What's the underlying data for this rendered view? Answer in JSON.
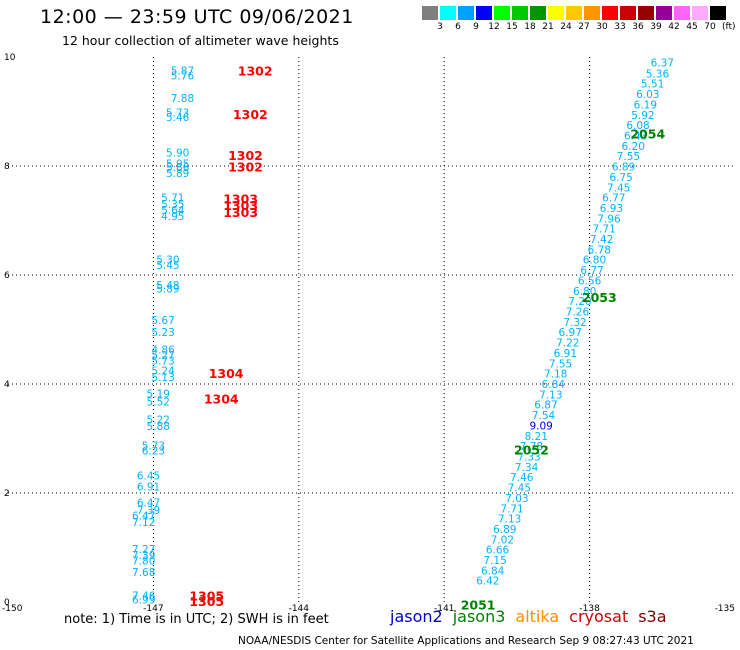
{
  "title": "12:00 — 23:59 UTC 09/06/2021",
  "subtitle": "12 hour collection of altimeter wave heights",
  "color_scale": {
    "colors": [
      "#7f7f7f",
      "#00ffff",
      "#00a0ff",
      "#0000ff",
      "#00ff00",
      "#00c800",
      "#009600",
      "#ffff00",
      "#ffc800",
      "#ff9600",
      "#ff0000",
      "#c80000",
      "#960000",
      "#960096",
      "#ff64ff",
      "#ffaaff",
      "#000000"
    ],
    "labels": [
      "3",
      "6",
      "9",
      "12",
      "15",
      "18",
      "21",
      "24",
      "27",
      "30",
      "33",
      "36",
      "39",
      "42",
      "45",
      "70"
    ],
    "unit": "(ft)"
  },
  "note": "note:  1) Time is in UTC;  2) SWH is in feet",
  "satellites": [
    {
      "name": "jason2",
      "color": "#0000cc"
    },
    {
      "name": "jason3",
      "color": "#008000"
    },
    {
      "name": "altika",
      "color": "#ff8c00"
    },
    {
      "name": "cryosat",
      "color": "#d00000"
    },
    {
      "name": "s3a",
      "color": "#800000"
    }
  ],
  "credit": "NOAA/NESDIS Center for Satellite Applications and Research    Sep  9 08:27:43 UTC 2021",
  "chart_data": {
    "type": "scatter",
    "xlim": [
      -150,
      -135
    ],
    "ylim": [
      0,
      10
    ],
    "x_ticks": [
      "-150",
      "-147",
      "-144",
      "-141",
      "-138",
      "-135"
    ],
    "y_ticks": [
      "0",
      "2",
      "4",
      "6",
      "8",
      "10"
    ],
    "grid": true,
    "track_labels": [
      {
        "text": "1302",
        "x": -144.9,
        "y": 9.75,
        "color": "#ff0000"
      },
      {
        "text": "1302",
        "x": -145.0,
        "y": 8.95,
        "color": "#ff0000"
      },
      {
        "text": "1302",
        "x": -145.1,
        "y": 8.2,
        "color": "#ff0000"
      },
      {
        "text": "1302",
        "x": -145.1,
        "y": 7.99,
        "color": "#ff0000"
      },
      {
        "text": "1303",
        "x": -145.2,
        "y": 7.4,
        "color": "#ff0000"
      },
      {
        "text": "1303",
        "x": -145.2,
        "y": 7.28,
        "color": "#ff0000"
      },
      {
        "text": "1303",
        "x": -145.2,
        "y": 7.16,
        "color": "#ff0000"
      },
      {
        "text": "1304",
        "x": -145.5,
        "y": 4.2,
        "color": "#ff0000"
      },
      {
        "text": "1304",
        "x": -145.6,
        "y": 3.73,
        "color": "#ff0000"
      },
      {
        "text": "1305",
        "x": -145.9,
        "y": 0.12,
        "color": "#ff0000"
      },
      {
        "text": "1305",
        "x": -145.9,
        "y": 0.02,
        "color": "#ff0000"
      },
      {
        "text": "2054",
        "x": -136.8,
        "y": 8.6,
        "color": "#008000"
      },
      {
        "text": "2053",
        "x": -137.8,
        "y": 5.6,
        "color": "#008000"
      },
      {
        "text": "2052",
        "x": -139.2,
        "y": 2.8,
        "color": "#008000"
      },
      {
        "text": "2051",
        "x": -140.3,
        "y": -0.05,
        "color": "#008000"
      }
    ],
    "points": [
      {
        "x": -146.4,
        "y": 9.75,
        "v": "5.87",
        "color": "#00b4ff"
      },
      {
        "x": -146.4,
        "y": 9.66,
        "v": "5.76",
        "color": "#00b4ff"
      },
      {
        "x": -146.4,
        "y": 9.25,
        "v": "7.88",
        "color": "#00b4ff"
      },
      {
        "x": -146.5,
        "y": 8.98,
        "v": "5.73",
        "color": "#00b4ff"
      },
      {
        "x": -146.5,
        "y": 8.9,
        "v": "5.46",
        "color": "#00b4ff"
      },
      {
        "x": -146.5,
        "y": 8.25,
        "v": "5.90",
        "color": "#00b4ff"
      },
      {
        "x": -146.5,
        "y": 8.05,
        "v": "5.95",
        "color": "#00b4ff"
      },
      {
        "x": -146.5,
        "y": 7.98,
        "v": "5.86",
        "color": "#00b4ff"
      },
      {
        "x": -146.5,
        "y": 7.87,
        "v": "5.89",
        "color": "#00b4ff"
      },
      {
        "x": -146.6,
        "y": 7.42,
        "v": "5.71",
        "color": "#00b4ff"
      },
      {
        "x": -146.6,
        "y": 7.3,
        "v": "5.35",
        "color": "#00b4ff"
      },
      {
        "x": -146.6,
        "y": 7.19,
        "v": "5.64",
        "color": "#00b4ff"
      },
      {
        "x": -146.6,
        "y": 7.08,
        "v": "4.95",
        "color": "#00b4ff"
      },
      {
        "x": -146.7,
        "y": 6.28,
        "v": "5.30",
        "color": "#00b4ff"
      },
      {
        "x": -146.7,
        "y": 6.18,
        "v": "5.45",
        "color": "#00b4ff"
      },
      {
        "x": -146.7,
        "y": 5.82,
        "v": "5.48",
        "color": "#00b4ff"
      },
      {
        "x": -146.7,
        "y": 5.75,
        "v": "5.89",
        "color": "#00b4ff"
      },
      {
        "x": -146.8,
        "y": 5.17,
        "v": "5.67",
        "color": "#00b4ff"
      },
      {
        "x": -146.8,
        "y": 4.95,
        "v": "5.23",
        "color": "#00b4ff"
      },
      {
        "x": -146.8,
        "y": 4.63,
        "v": "4.86",
        "color": "#00b4ff"
      },
      {
        "x": -146.8,
        "y": 4.53,
        "v": "5.27",
        "color": "#00b4ff"
      },
      {
        "x": -146.8,
        "y": 4.43,
        "v": "5.73",
        "color": "#00b4ff"
      },
      {
        "x": -146.8,
        "y": 4.25,
        "v": "5.24",
        "color": "#00b4ff"
      },
      {
        "x": -146.8,
        "y": 4.13,
        "v": "5.13",
        "color": "#00b4ff"
      },
      {
        "x": -146.9,
        "y": 3.83,
        "v": "5.19",
        "color": "#00b4ff"
      },
      {
        "x": -146.9,
        "y": 3.68,
        "v": "5.52",
        "color": "#00b4ff"
      },
      {
        "x": -146.9,
        "y": 3.35,
        "v": "5.22",
        "color": "#00b4ff"
      },
      {
        "x": -146.9,
        "y": 3.23,
        "v": "5.88",
        "color": "#00b4ff"
      },
      {
        "x": -147.0,
        "y": 2.87,
        "v": "5.73",
        "color": "#00b4ff"
      },
      {
        "x": -147.0,
        "y": 2.78,
        "v": "6.23",
        "color": "#00b4ff"
      },
      {
        "x": -147.1,
        "y": 2.32,
        "v": "6.45",
        "color": "#00b4ff"
      },
      {
        "x": -147.1,
        "y": 2.12,
        "v": "6.91",
        "color": "#00b4ff"
      },
      {
        "x": -147.1,
        "y": 1.83,
        "v": "6.47",
        "color": "#00b4ff"
      },
      {
        "x": -147.1,
        "y": 1.69,
        "v": "7.39",
        "color": "#00b4ff"
      },
      {
        "x": -147.2,
        "y": 1.59,
        "v": "6.47",
        "color": "#00b4ff"
      },
      {
        "x": -147.2,
        "y": 1.47,
        "v": "7.12",
        "color": "#00b4ff"
      },
      {
        "x": -147.2,
        "y": 0.97,
        "v": "7.27",
        "color": "#00b4ff"
      },
      {
        "x": -147.2,
        "y": 0.86,
        "v": "7.39",
        "color": "#00b4ff"
      },
      {
        "x": -147.2,
        "y": 0.76,
        "v": "7.80",
        "color": "#00b4ff"
      },
      {
        "x": -147.2,
        "y": 0.55,
        "v": "7.68",
        "color": "#00b4ff"
      },
      {
        "x": -147.2,
        "y": 0.12,
        "v": "7.46",
        "color": "#00b4ff"
      },
      {
        "x": -147.2,
        "y": 0.05,
        "v": "6.99",
        "color": "#00b4ff"
      },
      {
        "x": -136.5,
        "y": 9.9,
        "v": "6.37",
        "color": "#00b4ff"
      },
      {
        "x": -136.6,
        "y": 9.7,
        "v": "5.36",
        "color": "#00b4ff"
      },
      {
        "x": -136.7,
        "y": 9.51,
        "v": "5.51",
        "color": "#00b4ff"
      },
      {
        "x": -136.8,
        "y": 9.32,
        "v": "6.03",
        "color": "#00b4ff"
      },
      {
        "x": -136.85,
        "y": 9.13,
        "v": "6.19",
        "color": "#00b4ff"
      },
      {
        "x": -136.9,
        "y": 8.94,
        "v": "5.92",
        "color": "#00b4ff"
      },
      {
        "x": -137.0,
        "y": 8.75,
        "v": "6.08",
        "color": "#00b4ff"
      },
      {
        "x": -137.05,
        "y": 8.56,
        "v": "6.43",
        "color": "#00b4ff"
      },
      {
        "x": -137.1,
        "y": 8.37,
        "v": "6.20",
        "color": "#00b4ff"
      },
      {
        "x": -137.2,
        "y": 8.18,
        "v": "7.55",
        "color": "#00b4ff"
      },
      {
        "x": -137.3,
        "y": 7.99,
        "v": "6.89",
        "color": "#00b4ff"
      },
      {
        "x": -137.35,
        "y": 7.8,
        "v": "6.75",
        "color": "#00b4ff"
      },
      {
        "x": -137.4,
        "y": 7.61,
        "v": "7.45",
        "color": "#00b4ff"
      },
      {
        "x": -137.5,
        "y": 7.42,
        "v": "6.77",
        "color": "#00b4ff"
      },
      {
        "x": -137.55,
        "y": 7.23,
        "v": "6.93",
        "color": "#00b4ff"
      },
      {
        "x": -137.6,
        "y": 7.04,
        "v": "7.96",
        "color": "#00b4ff"
      },
      {
        "x": -137.7,
        "y": 6.85,
        "v": "7.71",
        "color": "#00b4ff"
      },
      {
        "x": -137.75,
        "y": 6.66,
        "v": "7.42",
        "color": "#00b4ff"
      },
      {
        "x": -137.8,
        "y": 6.47,
        "v": "6.78",
        "color": "#00b4ff"
      },
      {
        "x": -137.9,
        "y": 6.28,
        "v": "6.80",
        "color": "#00b4ff"
      },
      {
        "x": -137.95,
        "y": 6.09,
        "v": "6.77",
        "color": "#00b4ff"
      },
      {
        "x": -138.0,
        "y": 5.9,
        "v": "6.56",
        "color": "#00b4ff"
      },
      {
        "x": -138.1,
        "y": 5.71,
        "v": "6.80",
        "color": "#00b4ff"
      },
      {
        "x": -138.2,
        "y": 5.52,
        "v": "7.20",
        "color": "#00b4ff"
      },
      {
        "x": -138.25,
        "y": 5.33,
        "v": "7.26",
        "color": "#00b4ff"
      },
      {
        "x": -138.3,
        "y": 5.14,
        "v": "7.32",
        "color": "#00b4ff"
      },
      {
        "x": -138.4,
        "y": 4.95,
        "v": "6.97",
        "color": "#00b4ff"
      },
      {
        "x": -138.45,
        "y": 4.76,
        "v": "7.22",
        "color": "#00b4ff"
      },
      {
        "x": -138.5,
        "y": 4.57,
        "v": "6.91",
        "color": "#00b4ff"
      },
      {
        "x": -138.6,
        "y": 4.38,
        "v": "7.55",
        "color": "#00b4ff"
      },
      {
        "x": -138.7,
        "y": 4.19,
        "v": "7.18",
        "color": "#00b4ff"
      },
      {
        "x": -138.75,
        "y": 4.0,
        "v": "6.84",
        "color": "#00b4ff"
      },
      {
        "x": -138.8,
        "y": 3.81,
        "v": "7.13",
        "color": "#00b4ff"
      },
      {
        "x": -138.9,
        "y": 3.62,
        "v": "6.87",
        "color": "#00b4ff"
      },
      {
        "x": -138.95,
        "y": 3.43,
        "v": "7.54",
        "color": "#00b4ff"
      },
      {
        "x": -139.0,
        "y": 3.24,
        "v": "9.09",
        "color": "#0000ff"
      },
      {
        "x": -139.1,
        "y": 3.05,
        "v": "8.21",
        "color": "#00b4ff"
      },
      {
        "x": -139.2,
        "y": 2.86,
        "v": "7.78",
        "color": "#00b4ff"
      },
      {
        "x": -139.25,
        "y": 2.67,
        "v": "7.33",
        "color": "#00b4ff"
      },
      {
        "x": -139.3,
        "y": 2.48,
        "v": "7.34",
        "color": "#00b4ff"
      },
      {
        "x": -139.4,
        "y": 2.29,
        "v": "7.46",
        "color": "#00b4ff"
      },
      {
        "x": -139.45,
        "y": 2.1,
        "v": "7.45",
        "color": "#00b4ff"
      },
      {
        "x": -139.5,
        "y": 1.91,
        "v": "7.03",
        "color": "#00b4ff"
      },
      {
        "x": -139.6,
        "y": 1.72,
        "v": "7.71",
        "color": "#00b4ff"
      },
      {
        "x": -139.65,
        "y": 1.53,
        "v": "7.13",
        "color": "#00b4ff"
      },
      {
        "x": -139.75,
        "y": 1.34,
        "v": "6.89",
        "color": "#00b4ff"
      },
      {
        "x": -139.8,
        "y": 1.15,
        "v": "7.02",
        "color": "#00b4ff"
      },
      {
        "x": -139.9,
        "y": 0.96,
        "v": "6.66",
        "color": "#00b4ff"
      },
      {
        "x": -139.95,
        "y": 0.77,
        "v": "7.15",
        "color": "#00b4ff"
      },
      {
        "x": -140.0,
        "y": 0.58,
        "v": "6.84",
        "color": "#00b4ff"
      },
      {
        "x": -140.1,
        "y": 0.39,
        "v": "6.42",
        "color": "#00b4ff"
      }
    ]
  }
}
